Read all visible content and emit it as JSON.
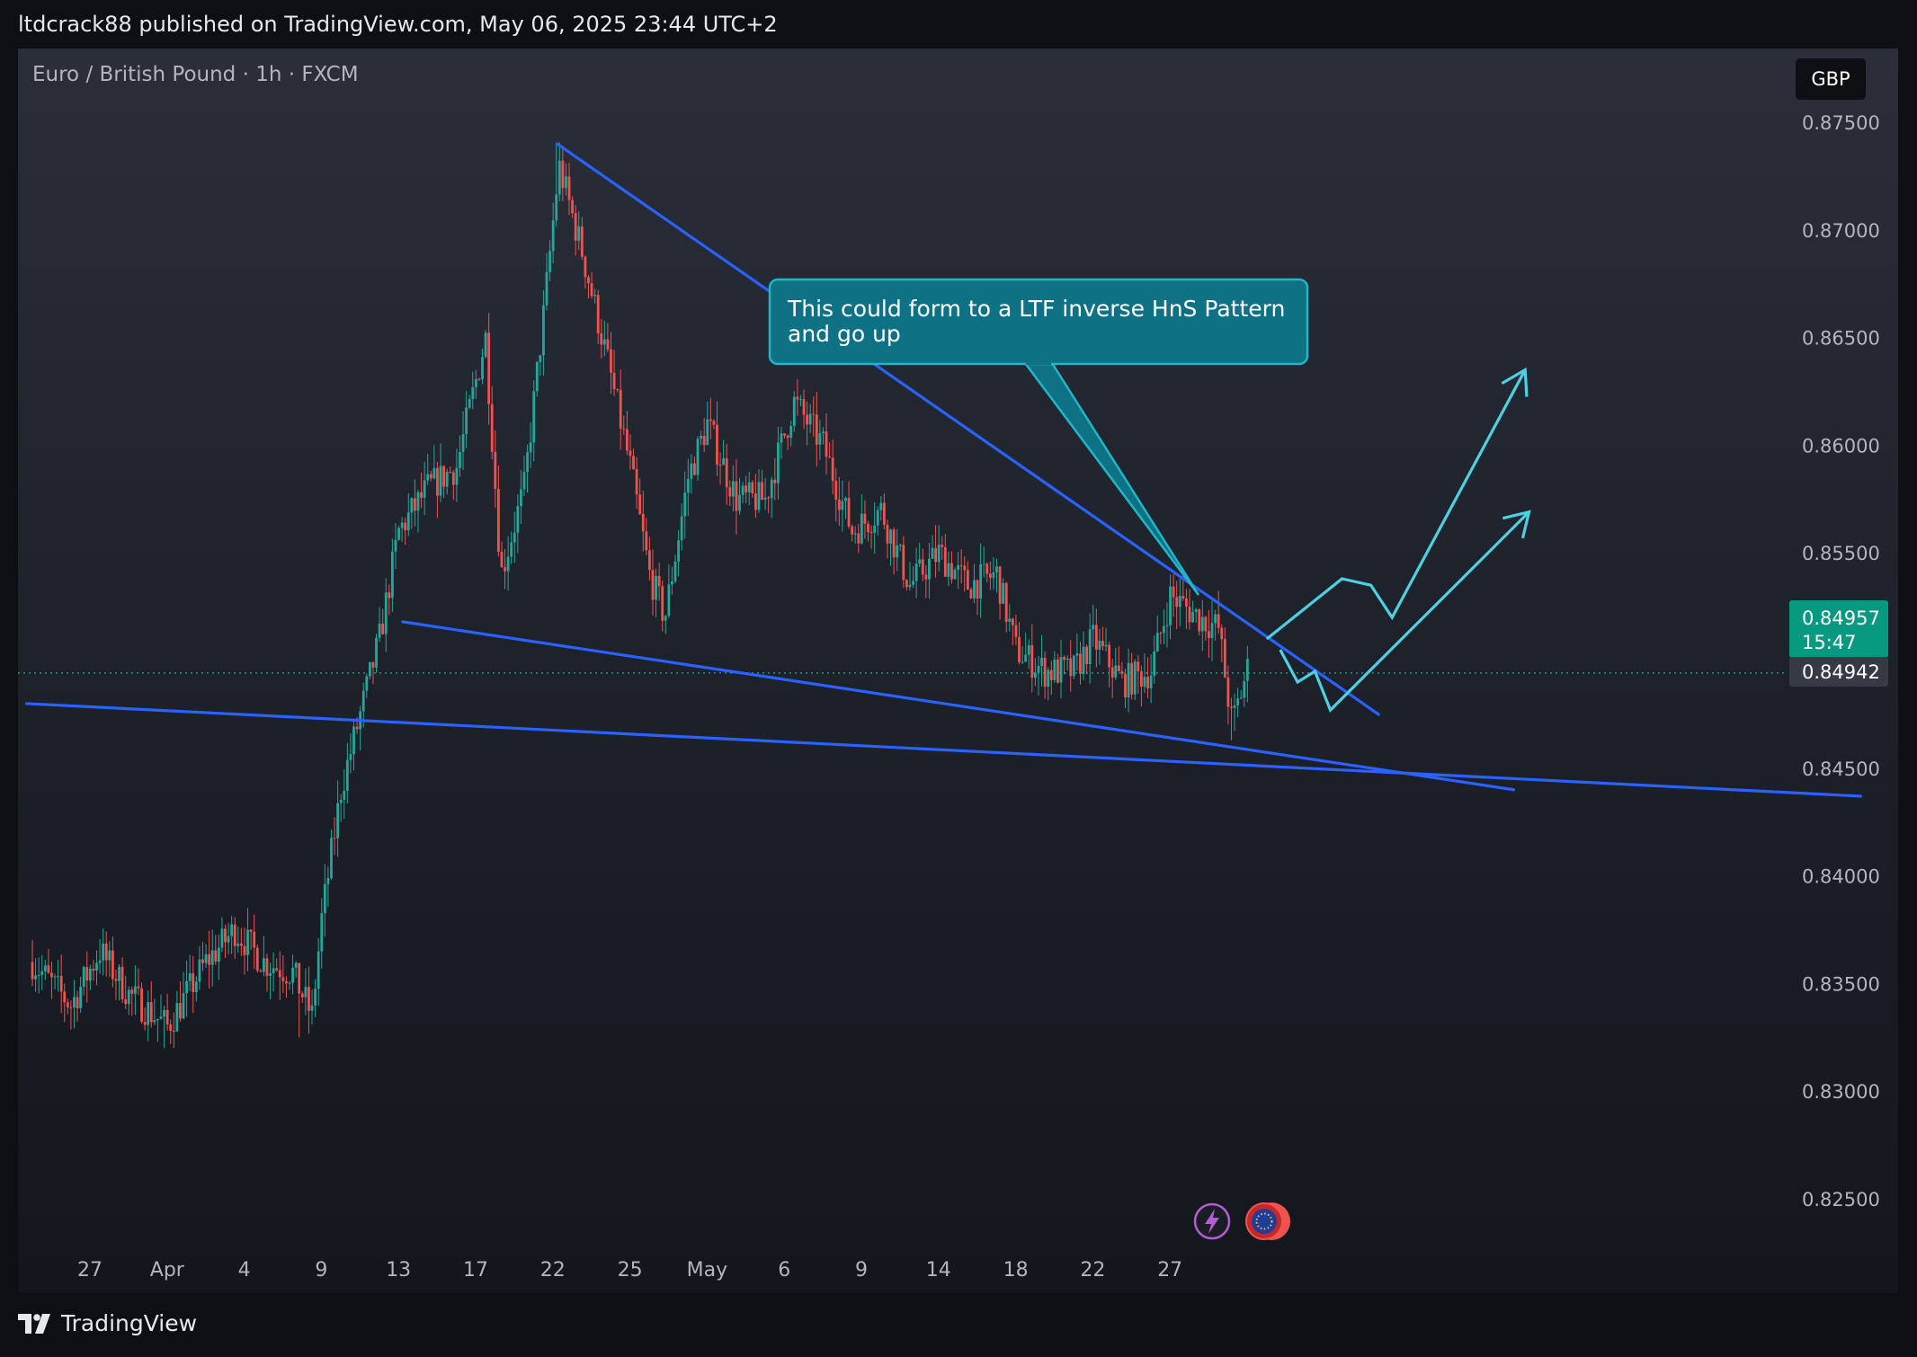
{
  "header": {
    "publish_text": "ltdcrack88 published on TradingView.com, May 06, 2025 23:44 UTC+2"
  },
  "chart_header": {
    "symbol_text": "Euro / British Pound · 1h · FXCM",
    "currency_button": "GBP"
  },
  "price_axis": {
    "labels": [
      "0.87500",
      "0.87000",
      "0.86500",
      "0.86000",
      "0.85500",
      "0.84500",
      "0.84000",
      "0.83500",
      "0.83000",
      "0.82500"
    ],
    "last_price": "0.84957",
    "countdown": "15:47",
    "crosshair_price": "0.84942"
  },
  "time_axis": {
    "labels": [
      "27",
      "Apr",
      "4",
      "9",
      "13",
      "17",
      "22",
      "25",
      "May",
      "6",
      "9",
      "14",
      "18",
      "22",
      "27"
    ]
  },
  "annotation": {
    "text_line1": "This could form to a LTF inverse HnS Pattern",
    "text_line2": "and go up"
  },
  "footer": {
    "brand": "TradingView"
  },
  "colors": {
    "up_candle": "#26a69a",
    "down_candle": "#ef5350",
    "trendline": "#2962ff",
    "projection": "#4dd0e1",
    "callout_bg": "#0e7184",
    "callout_border": "#22b5c8",
    "last_price_bg": "#089981"
  },
  "chart_data": {
    "type": "candlestick",
    "title": "Euro / British Pound · 1h · FXCM",
    "ylim": [
      0.822,
      0.877
    ],
    "ytick_labels": [
      "0.87500",
      "0.87000",
      "0.86500",
      "0.86000",
      "0.85500",
      "0.84500",
      "0.84000",
      "0.83500",
      "0.83000",
      "0.82500"
    ],
    "xtick_labels": [
      "27",
      "Apr",
      "4",
      "9",
      "13",
      "17",
      "22",
      "25",
      "May",
      "6",
      "9",
      "14",
      "18",
      "22",
      "27"
    ],
    "close_path": [
      {
        "d": 0,
        "close": 0.836
      },
      {
        "d": 2,
        "close": 0.834
      },
      {
        "d": 3.5,
        "close": 0.8365
      },
      {
        "d": 5,
        "close": 0.8345
      },
      {
        "d": 7,
        "close": 0.833
      },
      {
        "d": 9,
        "close": 0.836
      },
      {
        "d": 10.5,
        "close": 0.8375
      },
      {
        "d": 12,
        "close": 0.836
      },
      {
        "d": 13.5,
        "close": 0.8355
      },
      {
        "d": 14.5,
        "close": 0.8335
      },
      {
        "d": 15,
        "close": 0.838
      },
      {
        "d": 16,
        "close": 0.844
      },
      {
        "d": 17,
        "close": 0.8475
      },
      {
        "d": 18,
        "close": 0.851
      },
      {
        "d": 19,
        "close": 0.856
      },
      {
        "d": 20.5,
        "close": 0.858
      },
      {
        "d": 22,
        "close": 0.859
      },
      {
        "d": 23.5,
        "close": 0.865
      },
      {
        "d": 24.3,
        "close": 0.854
      },
      {
        "d": 25.5,
        "close": 0.858
      },
      {
        "d": 26.5,
        "close": 0.866
      },
      {
        "d": 27.3,
        "close": 0.873
      },
      {
        "d": 28.5,
        "close": 0.869
      },
      {
        "d": 29.8,
        "close": 0.864
      },
      {
        "d": 31,
        "close": 0.859
      },
      {
        "d": 32,
        "close": 0.854
      },
      {
        "d": 32.8,
        "close": 0.852
      },
      {
        "d": 34,
        "close": 0.8585
      },
      {
        "d": 35,
        "close": 0.861
      },
      {
        "d": 36.5,
        "close": 0.8575
      },
      {
        "d": 38,
        "close": 0.8575
      },
      {
        "d": 39.5,
        "close": 0.862
      },
      {
        "d": 41,
        "close": 0.86
      },
      {
        "d": 42.5,
        "close": 0.856
      },
      {
        "d": 44,
        "close": 0.857
      },
      {
        "d": 45.5,
        "close": 0.8535
      },
      {
        "d": 47,
        "close": 0.855
      },
      {
        "d": 48.5,
        "close": 0.8535
      },
      {
        "d": 50,
        "close": 0.854
      },
      {
        "d": 51,
        "close": 0.8505
      },
      {
        "d": 52.5,
        "close": 0.8495
      },
      {
        "d": 54,
        "close": 0.8495
      },
      {
        "d": 55,
        "close": 0.851
      },
      {
        "d": 56.5,
        "close": 0.849
      },
      {
        "d": 58,
        "close": 0.8495
      },
      {
        "d": 59,
        "close": 0.853
      },
      {
        "d": 60.5,
        "close": 0.852
      },
      {
        "d": 61.5,
        "close": 0.8515
      },
      {
        "d": 62.2,
        "close": 0.847
      },
      {
        "d": 63,
        "close": 0.8496
      }
    ],
    "pivot_highs": [
      {
        "d": 27.2,
        "price": 0.874
      },
      {
        "d": 59.2,
        "price": 0.854
      }
    ],
    "pivot_lows": [
      {
        "d": 6.8,
        "price": 0.832
      },
      {
        "d": 13.8,
        "price": 0.8325
      },
      {
        "d": 62.2,
        "price": 0.8463
      }
    ],
    "trendlines": [
      {
        "name": "upper",
        "from": {
          "d": 27.2,
          "price": 0.874
        },
        "to": {
          "d": 69.8,
          "price": 0.8475
        }
      },
      {
        "name": "lower",
        "from": {
          "d": 19.2,
          "price": 0.8518
        },
        "to": {
          "d": 76.8,
          "price": 0.844
        }
      },
      {
        "name": "long-support",
        "from": {
          "d": -0.3,
          "price": 0.848
        },
        "to": {
          "d": 94.8,
          "price": 0.8437
        }
      }
    ],
    "projection_paths": [
      [
        {
          "d": 64.0,
          "price": 0.851
        },
        {
          "d": 67.9,
          "price": 0.8538
        },
        {
          "d": 69.4,
          "price": 0.8535
        },
        {
          "d": 70.5,
          "price": 0.852
        },
        {
          "d": 77.4,
          "price": 0.8635
        }
      ],
      [
        {
          "d": 64.7,
          "price": 0.8505
        },
        {
          "d": 65.6,
          "price": 0.849
        },
        {
          "d": 66.5,
          "price": 0.8495
        },
        {
          "d": 67.3,
          "price": 0.8477
        },
        {
          "d": 77.6,
          "price": 0.8569
        }
      ]
    ],
    "last_price": 0.84957,
    "crosshair_price": 0.84942
  }
}
